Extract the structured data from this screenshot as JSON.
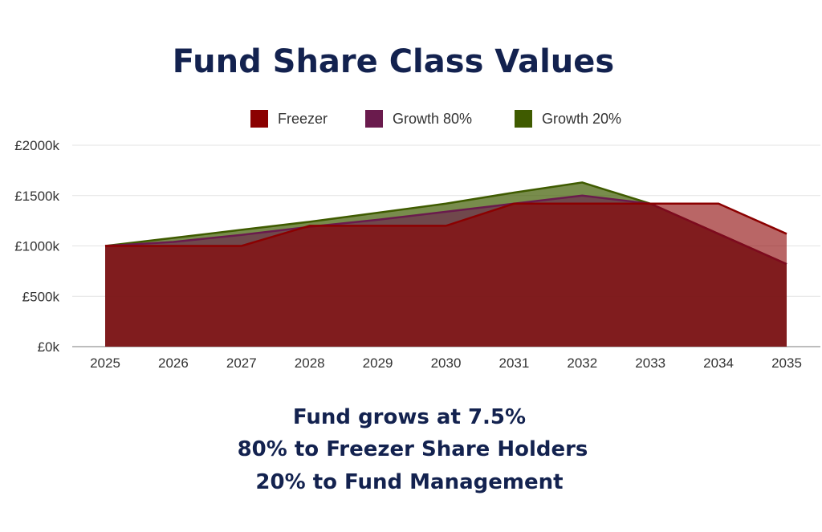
{
  "chart_data": {
    "type": "area",
    "title": "Fund Share Class Values",
    "x": [
      "2025",
      "2026",
      "2027",
      "2028",
      "2029",
      "2030",
      "2031",
      "2032",
      "2033",
      "2034",
      "2035"
    ],
    "series": [
      {
        "name": "Freezer",
        "color": "#8b0000",
        "values": [
          1000,
          1000,
          1000,
          1200,
          1200,
          1200,
          1420,
          1420,
          1420,
          1420,
          1120
        ]
      },
      {
        "name": "Growth 80%",
        "color": "#6a1b4d",
        "values": [
          1000,
          1040,
          1110,
          1190,
          1260,
          1340,
          1420,
          1500,
          1420,
          1120,
          820
        ]
      },
      {
        "name": "Growth 20%",
        "color": "#3f5b00",
        "values": [
          1000,
          1080,
          1160,
          1240,
          1330,
          1420,
          1530,
          1630,
          1420,
          1120,
          820
        ]
      }
    ],
    "y_ticks": [
      "£0k",
      "£500k",
      "£1000k",
      "£1500k",
      "£2000k"
    ],
    "ylim": [
      0,
      2000
    ],
    "grid": true,
    "legend_position": "top"
  },
  "notes": [
    "Fund grows at 7.5%",
    "80% to Freezer Share Holders",
    "20% to Fund Management"
  ]
}
